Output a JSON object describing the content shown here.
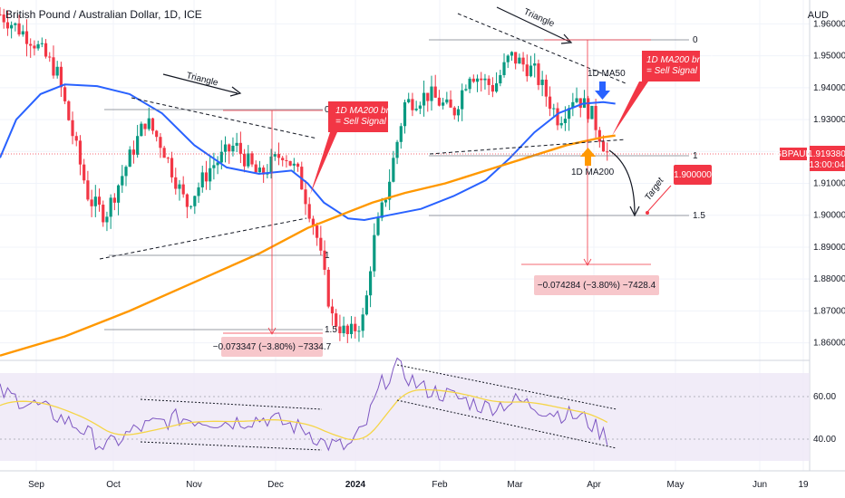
{
  "header": {
    "title": "British Pound / Australian Dollar, 1D, ICE",
    "currency": "AUD"
  },
  "price_axis": {
    "ticks": [
      "1.960000",
      "1.950000",
      "1.940000",
      "1.930000",
      "1.920000",
      "1.910000",
      "1.900000",
      "1.890000",
      "1.880000",
      "1.870000",
      "1.860000"
    ],
    "current_symbol": "GBPAUD",
    "current_price": "1.919380",
    "countdown": "13:00:04"
  },
  "rsi_axis": {
    "ticks": [
      "60.00",
      "40.00"
    ]
  },
  "time_axis": {
    "labels": [
      "Sep",
      "Oct",
      "Nov",
      "Dec",
      "2024",
      "Feb",
      "Mar",
      "Apr",
      "May",
      "Jun",
      "19"
    ]
  },
  "annotations": {
    "triangle_left": "Triangle",
    "triangle_right": "Triangle",
    "ma200_break_left_line1": "1D MA200 break",
    "ma200_break_left_line2": "= Sell Signal",
    "ma200_break_right_line1": "1D MA200 break",
    "ma200_break_right_line2": "= Sell Signal",
    "ma50_label": "1D MA50",
    "ma200_label": "1D MA200",
    "target_label": "Target",
    "target_price": "1.900000",
    "fib_left_0": "0",
    "fib_left_1": "1",
    "fib_left_15": "1.5",
    "fib_right_0": "0",
    "fib_right_1": "1",
    "fib_right_15": "1.5",
    "measure_left": "−0.073347 (−3.80%) −7334.7",
    "measure_right": "−0.074284 (−3.80%) −7428.4"
  },
  "chart_data": {
    "type": "candlestick",
    "timeframe": "1D",
    "price_range": [
      1.8545,
      1.9675
    ],
    "series": [
      {
        "name": "1D MA50",
        "color": "#2962ff",
        "points": [
          [
            0.0,
            1.918
          ],
          [
            0.02,
            1.93
          ],
          [
            0.05,
            1.938
          ],
          [
            0.08,
            1.941
          ],
          [
            0.12,
            1.9405
          ],
          [
            0.16,
            1.938
          ],
          [
            0.2,
            1.932
          ],
          [
            0.24,
            1.922
          ],
          [
            0.28,
            1.915
          ],
          [
            0.32,
            1.913
          ],
          [
            0.36,
            1.914
          ],
          [
            0.38,
            1.91
          ],
          [
            0.4,
            1.904
          ],
          [
            0.43,
            1.899
          ],
          [
            0.45,
            1.8985
          ],
          [
            0.48,
            1.9
          ],
          [
            0.52,
            1.902
          ],
          [
            0.56,
            1.906
          ],
          [
            0.6,
            1.911
          ],
          [
            0.63,
            1.918
          ],
          [
            0.66,
            1.926
          ],
          [
            0.69,
            1.932
          ],
          [
            0.72,
            1.935
          ],
          [
            0.745,
            1.9355
          ],
          [
            0.76,
            1.935
          ]
        ]
      },
      {
        "name": "1D MA200",
        "color": "#ff9800",
        "points": [
          [
            0.0,
            1.856
          ],
          [
            0.08,
            1.862
          ],
          [
            0.16,
            1.87
          ],
          [
            0.24,
            1.879
          ],
          [
            0.32,
            1.888
          ],
          [
            0.38,
            1.896
          ],
          [
            0.42,
            1.9
          ],
          [
            0.46,
            1.904
          ],
          [
            0.5,
            1.907
          ],
          [
            0.55,
            1.91
          ],
          [
            0.6,
            1.914
          ],
          [
            0.65,
            1.918
          ],
          [
            0.7,
            1.922
          ],
          [
            0.745,
            1.9245
          ],
          [
            0.76,
            1.925
          ]
        ]
      }
    ],
    "levels": {
      "current": 1.91938,
      "target": 1.9
    },
    "measurements": [
      {
        "change": -0.073347,
        "percent": -3.8,
        "pips": -7334.7
      },
      {
        "change": -0.074284,
        "percent": -3.8,
        "pips": -7428.4
      }
    ],
    "rsi": {
      "levels": [
        60,
        40
      ],
      "band": [
        70,
        30
      ]
    }
  }
}
